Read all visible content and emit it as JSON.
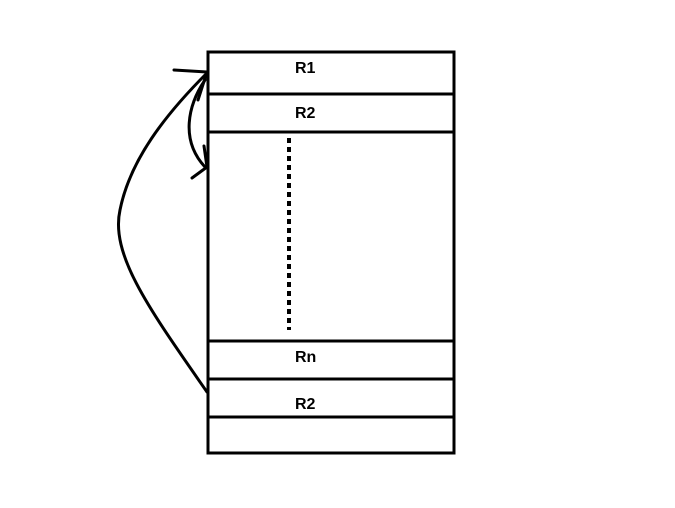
{
  "colors": {
    "stroke": "#000000",
    "background": "#ffffff"
  },
  "stack": {
    "rows": [
      {
        "label": "R1"
      },
      {
        "label": "R2"
      },
      {
        "label": "Rn"
      },
      {
        "label": "R2"
      }
    ]
  },
  "arrows": [
    {
      "from": "stack-row-r2-bottom",
      "to": "stack-row-r1",
      "kind": "back-reference"
    },
    {
      "from": "stack-row-r2-top",
      "to": "stack-gap-area",
      "kind": "forward-reference"
    }
  ]
}
